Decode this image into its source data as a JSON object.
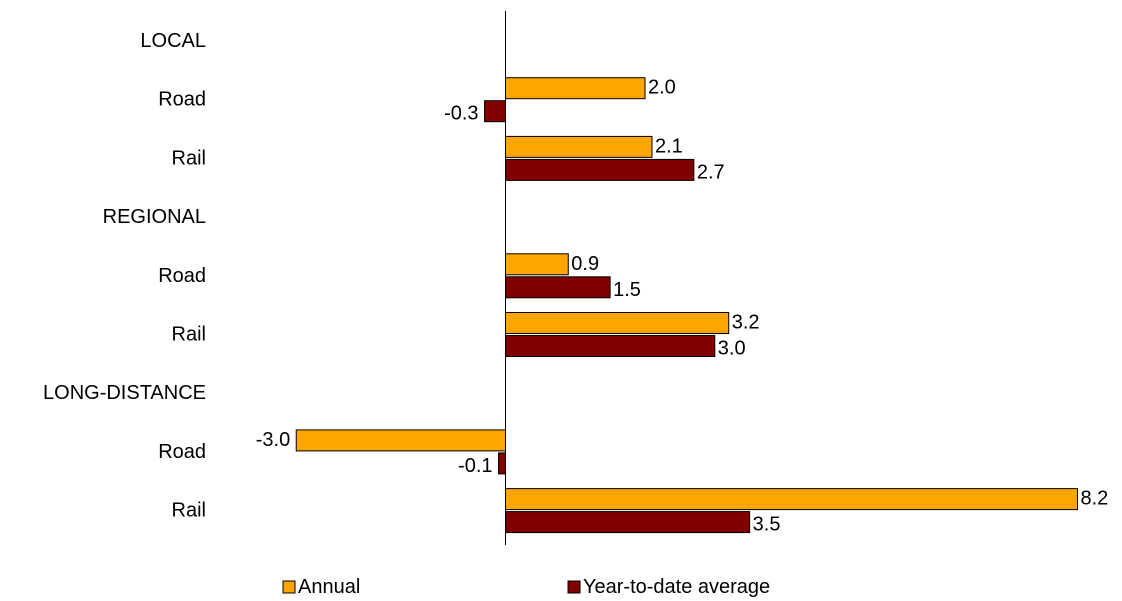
{
  "chart_data": {
    "type": "bar",
    "orientation": "horizontal",
    "categories": [
      "LOCAL",
      "Road",
      "Rail",
      "REGIONAL",
      "Road",
      "Rail",
      "LONG-DISTANCE",
      "Road",
      "Rail"
    ],
    "group_headers": [
      "LOCAL",
      "REGIONAL",
      "LONG-DISTANCE"
    ],
    "series": [
      {
        "name": "Annual",
        "color": "#FFA500",
        "values": [
          null,
          2.0,
          2.1,
          null,
          0.9,
          3.2,
          null,
          -3.0,
          8.2
        ]
      },
      {
        "name": "Year-to-date average",
        "color": "#800000",
        "values": [
          null,
          -0.3,
          2.7,
          null,
          1.5,
          3.0,
          null,
          -0.1,
          3.5
        ]
      }
    ],
    "value_format": "0.0",
    "xlim": [
      -3.0,
      8.2
    ],
    "grid": false,
    "legend": "bottom",
    "title": "",
    "xlabel": "",
    "ylabel": ""
  }
}
